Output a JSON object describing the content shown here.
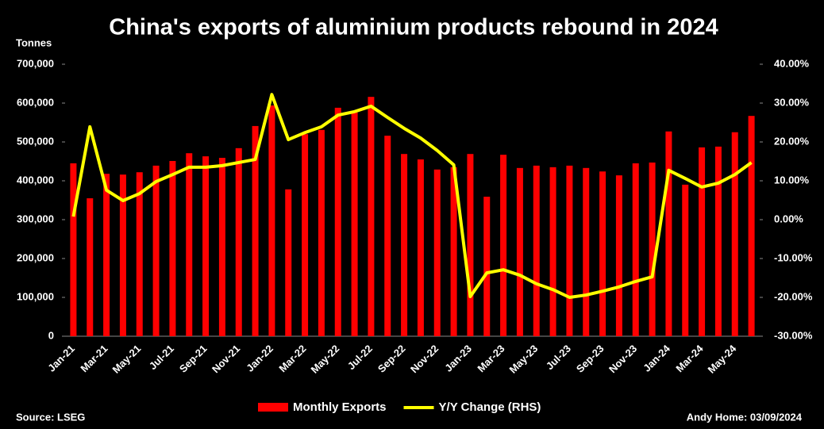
{
  "chart_data": {
    "type": "bar-line",
    "title": "China's exports of aluminium products rebound in 2024",
    "y_label": "Tonnes",
    "source": "Source: LSEG",
    "credit": "Andy Home: 03/09/2024",
    "categories": [
      "Jan-21",
      null,
      "Mar-21",
      null,
      "May-21",
      null,
      "Jul-21",
      null,
      "Sep-21",
      null,
      "Nov-21",
      null,
      "Jan-22",
      null,
      "Mar-22",
      null,
      "May-22",
      null,
      "Jul-22",
      null,
      "Sep-22",
      null,
      "Nov-22",
      null,
      "Jan-23",
      null,
      "Mar-23",
      null,
      "May-23",
      null,
      "Jul-23",
      null,
      "Sep-23",
      null,
      "Nov-23",
      null,
      "Jan-24",
      null,
      "Mar-24",
      null,
      "May-24",
      null
    ],
    "series": [
      {
        "name": "Monthly Exports",
        "type": "bar",
        "color": "#ff0000",
        "values": [
          445000,
          355000,
          418000,
          416000,
          422000,
          439000,
          451000,
          471000,
          463000,
          459000,
          484000,
          541000,
          594000,
          378000,
          520000,
          531000,
          588000,
          576000,
          616000,
          516000,
          469000,
          455000,
          429000,
          435000,
          469000,
          359000,
          467000,
          433000,
          439000,
          435000,
          439000,
          433000,
          424000,
          414000,
          445000,
          447000,
          527000,
          390000,
          486000,
          488000,
          525000,
          567000
        ]
      },
      {
        "name": "Y/Y Change (RHS)",
        "type": "line",
        "axis": "y2",
        "color": "#ffff00",
        "values": [
          0.8,
          23.9,
          7.6,
          4.9,
          6.7,
          9.8,
          11.6,
          13.5,
          13.5,
          13.9,
          14.7,
          15.5,
          32.2,
          20.6,
          22.4,
          23.9,
          26.9,
          27.8,
          29.2,
          26.3,
          23.5,
          21.0,
          17.8,
          14.1,
          -19.8,
          -13.7,
          -12.9,
          -14.3,
          -16.5,
          -18.0,
          -20.0,
          -19.4,
          -18.4,
          -17.3,
          -15.9,
          -14.7,
          12.7,
          10.6,
          8.4,
          9.4,
          11.6,
          14.7
        ]
      }
    ],
    "ylim": [
      0,
      700000
    ],
    "yticks": [
      {
        "value": 700000,
        "label": "700,000"
      },
      {
        "value": 600000,
        "label": "600,000"
      },
      {
        "value": 500000,
        "label": "500,000"
      },
      {
        "value": 400000,
        "label": "400,000"
      },
      {
        "value": 300000,
        "label": "300,000"
      },
      {
        "value": 200000,
        "label": "200,000"
      },
      {
        "value": 100000,
        "label": "100,000"
      },
      0
    ],
    "y2lim": [
      -30,
      40
    ],
    "y2ticks": [
      {
        "value": 40,
        "label": "40.00%"
      },
      {
        "value": 30,
        "label": "30.00%"
      },
      {
        "value": 20,
        "label": "20.00%"
      },
      {
        "value": 10,
        "label": "10.00%"
      },
      {
        "value": 0,
        "label": "0.00%"
      },
      {
        "value": -10,
        "label": "-10.00%"
      },
      {
        "value": -20,
        "label": "-20.00%"
      },
      {
        "value": -30,
        "label": "-30.00%"
      }
    ],
    "grid": false,
    "legend": "bottom"
  }
}
